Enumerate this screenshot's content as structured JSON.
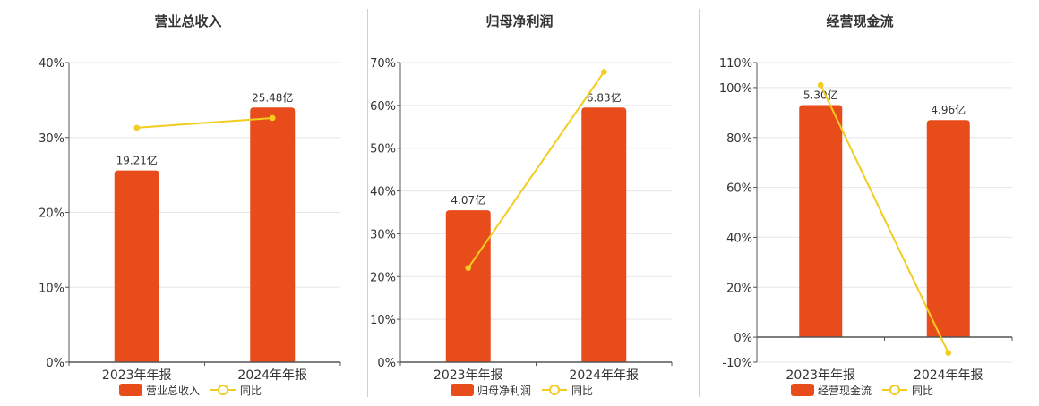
{
  "colors": {
    "bar": "#e84c1b",
    "line": "#f2cc1f",
    "axis": "#555555",
    "grid": "#e6e6e6",
    "text": "#333333",
    "title": "#333333"
  },
  "chart_data": [
    {
      "type": "bar",
      "title": "营业总收入",
      "categories": [
        "2023年年报",
        "2024年年报"
      ],
      "ylim": [
        0,
        40
      ],
      "yticks": [
        0,
        10,
        20,
        30,
        40
      ],
      "ytick_labels": [
        "0%",
        "10%",
        "20%",
        "30%",
        "40%"
      ],
      "grid": true,
      "legend_position": "bottom-center",
      "series": [
        {
          "name": "营业总收入",
          "type": "bar",
          "values": [
            25.6,
            34.0
          ],
          "data_labels": [
            "19.21亿",
            "25.48亿"
          ]
        },
        {
          "name": "同比",
          "type": "line",
          "values": [
            31.3,
            32.6
          ]
        }
      ]
    },
    {
      "type": "bar",
      "title": "归母净利润",
      "categories": [
        "2023年年报",
        "2024年年报"
      ],
      "ylim": [
        0,
        70
      ],
      "yticks": [
        0,
        10,
        20,
        30,
        40,
        50,
        60,
        70
      ],
      "ytick_labels": [
        "0%",
        "10%",
        "20%",
        "30%",
        "40%",
        "50%",
        "60%",
        "70%"
      ],
      "grid": true,
      "legend_position": "bottom-center",
      "series": [
        {
          "name": "归母净利润",
          "type": "bar",
          "values": [
            35.5,
            59.5
          ],
          "data_labels": [
            "4.07亿",
            "6.83亿"
          ]
        },
        {
          "name": "同比",
          "type": "line",
          "values": [
            22.0,
            67.8
          ]
        }
      ]
    },
    {
      "type": "bar",
      "title": "经营现金流",
      "categories": [
        "2023年年报",
        "2024年年报"
      ],
      "ylim": [
        -10,
        110
      ],
      "yticks": [
        -10,
        0,
        20,
        40,
        60,
        80,
        100,
        110
      ],
      "ytick_labels": [
        "-10%",
        "0%",
        "20%",
        "40%",
        "60%",
        "80%",
        "100%",
        "110%"
      ],
      "grid": true,
      "legend_position": "bottom-center",
      "series": [
        {
          "name": "经营现金流",
          "type": "bar",
          "values": [
            93.0,
            87.0
          ],
          "data_labels": [
            "5.30亿",
            "4.96亿"
          ]
        },
        {
          "name": "同比",
          "type": "line",
          "values": [
            101.0,
            -6.3
          ]
        }
      ]
    }
  ]
}
